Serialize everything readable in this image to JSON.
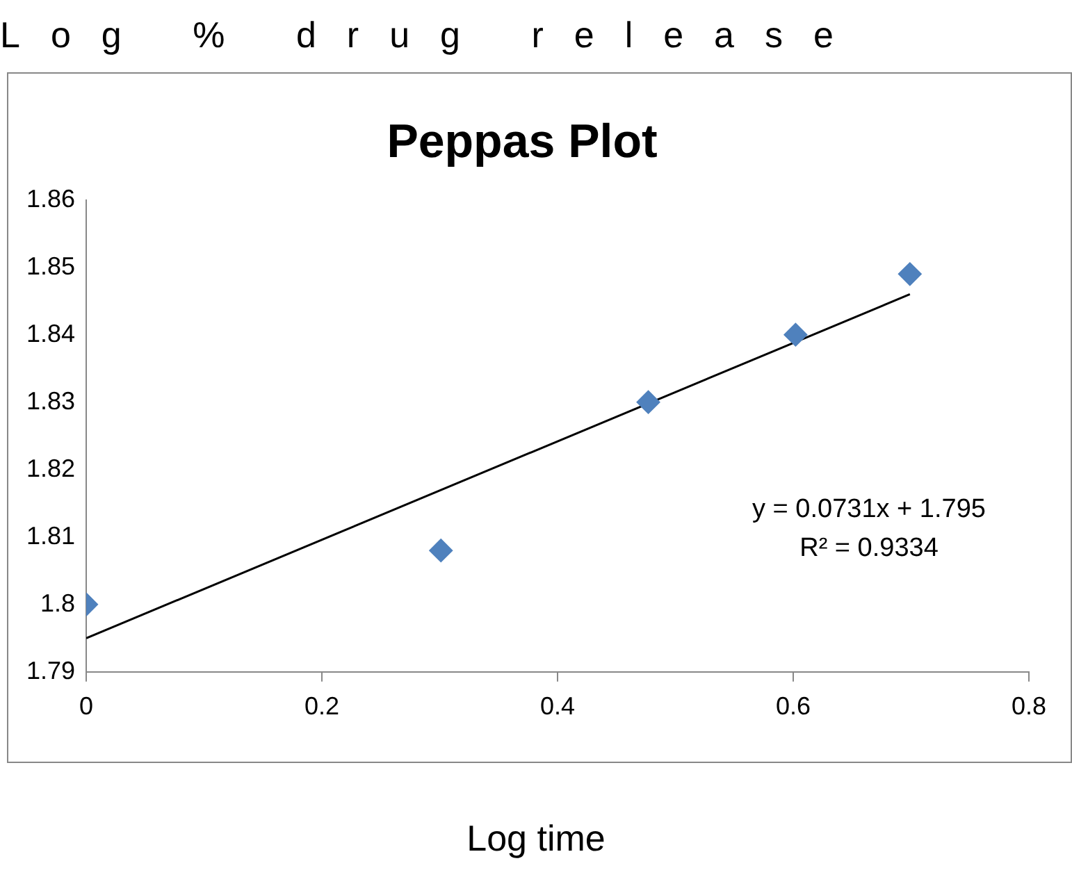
{
  "chart_data": {
    "type": "scatter",
    "title": "Peppas Plot",
    "xlabel": "Log time",
    "ylabel": "Log % drug release",
    "x": [
      0,
      0.301,
      0.477,
      0.602,
      0.699
    ],
    "series": [
      {
        "type": "scatter",
        "color": "#4f81bd",
        "marker": "diamond",
        "values": [
          1.8,
          1.808,
          1.83,
          1.84,
          1.849
        ]
      },
      {
        "type": "line",
        "color": "#000000",
        "marker": "none",
        "x": [
          0,
          0.699
        ],
        "values": [
          1.795,
          1.846
        ]
      }
    ],
    "xlim": [
      0,
      0.8
    ],
    "xticks": [
      0,
      0.2,
      0.4,
      0.6,
      0.8
    ],
    "ylim": [
      1.79,
      1.86
    ],
    "yticks": [
      1.79,
      1.8,
      1.81,
      1.82,
      1.83,
      1.84,
      1.85,
      1.86
    ],
    "grid": false,
    "legend": false,
    "annotations": [
      "y = 0.0731x + 1.795",
      "R² = 0.9334"
    ]
  }
}
